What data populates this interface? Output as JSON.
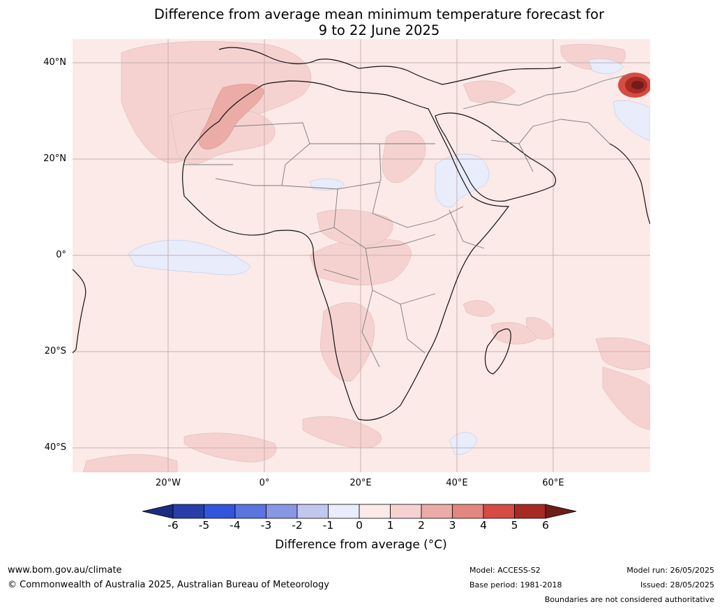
{
  "title": {
    "line1": "Difference from average mean minimum temperature forecast for",
    "line2": "9 to 22 June 2025"
  },
  "map": {
    "region": "Africa",
    "lat_labels": [
      "40°N",
      "20°N",
      "0°",
      "20°S",
      "40°S"
    ],
    "lon_labels": [
      "20°W",
      "0°",
      "20°E",
      "40°E",
      "60°E"
    ],
    "background_color": "#fbeae8",
    "anomaly_regions": [
      {
        "area": "North-west Africa / Morocco coast",
        "value_range": "2 to 3"
      },
      {
        "area": "Himalaya / northern Pakistan",
        "value_range": "5 to 6+"
      },
      {
        "area": "Equatorial Atlantic",
        "value_range": "-1 to 0"
      },
      {
        "area": "Ethiopian highlands / Red Sea",
        "value_range": "-1 to 0"
      },
      {
        "area": "Most of Africa",
        "value_range": "0 to 1"
      }
    ]
  },
  "colorbar": {
    "ticks": [
      "-6",
      "-5",
      "-4",
      "-3",
      "-2",
      "-1",
      "0",
      "1",
      "2",
      "3",
      "4",
      "5",
      "6"
    ],
    "colors": [
      "#1c2c80",
      "#2a3eaa",
      "#3355de",
      "#5a74e0",
      "#8797e6",
      "#c0c8f0",
      "#e8ecfb",
      "#fbeae8",
      "#f5d2d0",
      "#ebaba6",
      "#e38680",
      "#d64b43",
      "#a82a24",
      "#6e1d18"
    ],
    "label": "Difference from average (°C)"
  },
  "footer": {
    "website": "www.bom.gov.au/climate",
    "copyright": "© Commonwealth of Australia 2025, Australian Bureau of Meteorology",
    "model": "Model: ACCESS-S2",
    "base_period": "Base period: 1981-2018",
    "model_run": "Model run: 26/05/2025",
    "issued": "Issued: 28/05/2025",
    "disclaimer": "Boundaries are not considered authoritative"
  }
}
